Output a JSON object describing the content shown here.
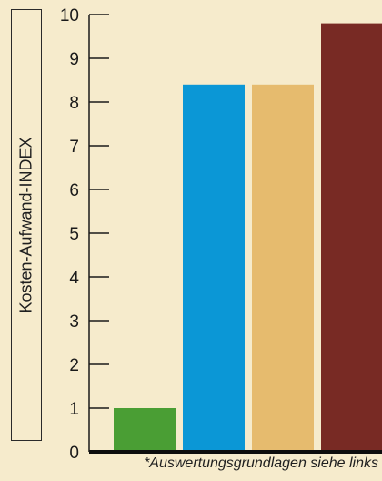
{
  "chart_data": {
    "type": "bar",
    "categories": [
      "",
      "",
      "",
      ""
    ],
    "values": [
      1.0,
      8.4,
      8.4,
      9.8
    ],
    "colors": [
      "#4a9e34",
      "#0b97d6",
      "#e6bb6e",
      "#782a24"
    ],
    "ylabel": "Kosten-Aufwand-INDEX",
    "yticks": [
      "0",
      "1",
      "2",
      "3",
      "4",
      "5",
      "6",
      "7",
      "8",
      "9",
      "10"
    ],
    "ylim": [
      0,
      10
    ],
    "grid": false,
    "footnote": "*Auswertungsgrundlagen siehe links"
  }
}
